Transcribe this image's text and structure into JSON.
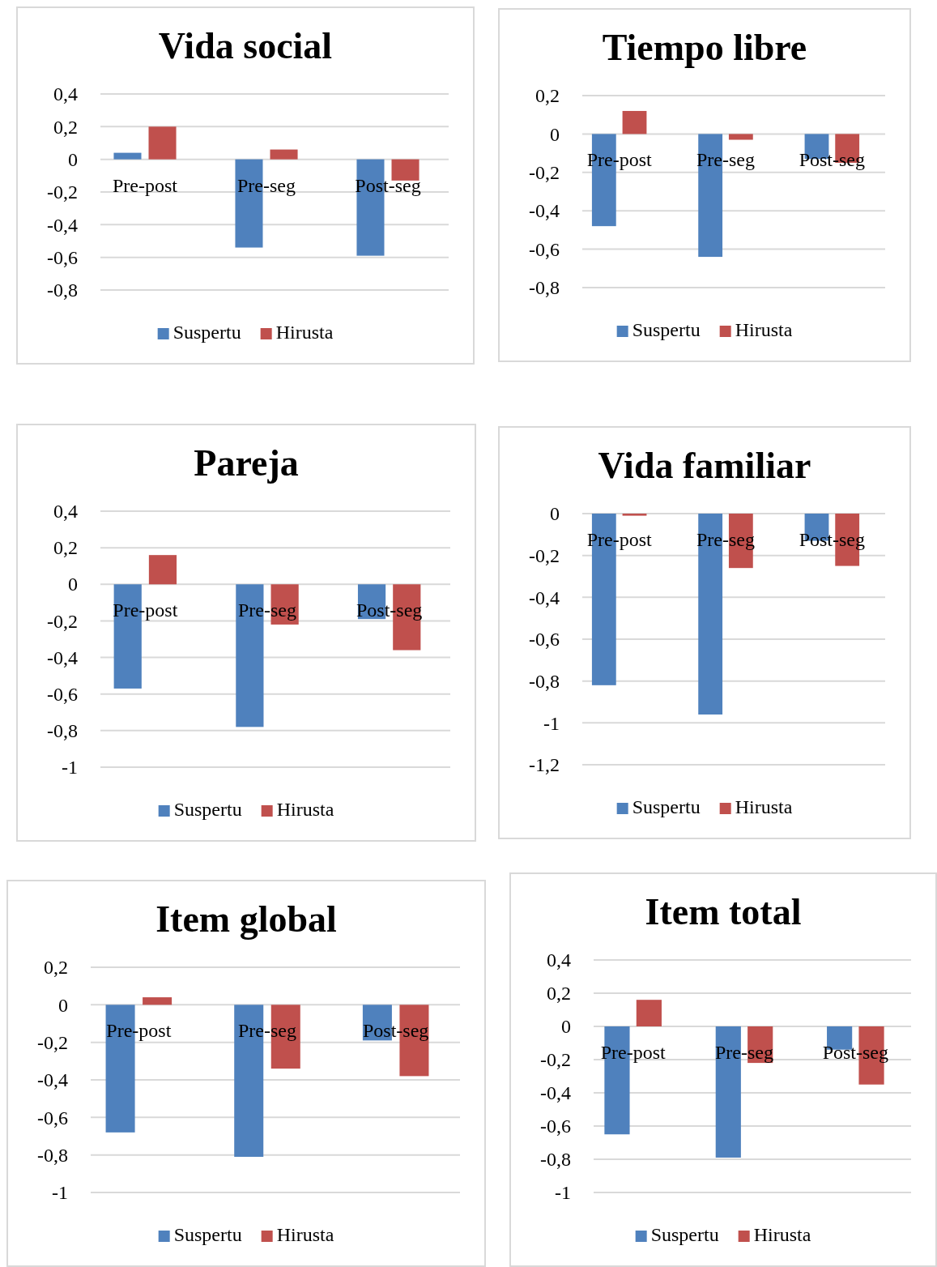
{
  "chart_data": [
    {
      "type": "bar",
      "title": "Vida social",
      "categories": [
        "Pre-post",
        "Pre-seg",
        "Post-seg"
      ],
      "series": [
        {
          "name": "Suspertu",
          "color": "#4f81bd",
          "values": [
            0.04,
            -0.54,
            -0.59
          ]
        },
        {
          "name": "Hirusta",
          "color": "#c0504d",
          "values": [
            0.2,
            0.06,
            -0.13
          ]
        }
      ],
      "ylim": [
        -0.8,
        0.4
      ],
      "yticks": [
        {
          "value": 0.4,
          "label": "0,4"
        },
        {
          "value": 0.2,
          "label": "0,2"
        },
        {
          "value": 0,
          "label": "0"
        },
        {
          "value": -0.2,
          "label": "-0,2"
        },
        {
          "value": -0.4,
          "label": "-0,4"
        },
        {
          "value": -0.6,
          "label": "-0,6"
        },
        {
          "value": -0.8,
          "label": "-0,8"
        }
      ],
      "grid": "y",
      "legend": "bottom"
    },
    {
      "type": "bar",
      "title": "Tiempo libre",
      "categories": [
        "Pre-post",
        "Pre-seg",
        "Post-seg"
      ],
      "series": [
        {
          "name": "Suspertu",
          "color": "#4f81bd",
          "values": [
            -0.48,
            -0.64,
            -0.13
          ]
        },
        {
          "name": "Hirusta",
          "color": "#c0504d",
          "values": [
            0.12,
            -0.03,
            -0.15
          ]
        }
      ],
      "ylim": [
        -0.8,
        0.2
      ],
      "yticks": [
        {
          "value": 0.2,
          "label": "0,2"
        },
        {
          "value": 0,
          "label": "0"
        },
        {
          "value": -0.2,
          "label": "-0,2"
        },
        {
          "value": -0.4,
          "label": "-0,4"
        },
        {
          "value": -0.6,
          "label": "-0,6"
        },
        {
          "value": -0.8,
          "label": "-0,8"
        }
      ],
      "grid": "y",
      "legend": "bottom"
    },
    {
      "type": "bar",
      "title": "Pareja",
      "categories": [
        "Pre-post",
        "Pre-seg",
        "Post-seg"
      ],
      "series": [
        {
          "name": "Suspertu",
          "color": "#4f81bd",
          "values": [
            -0.57,
            -0.78,
            -0.19
          ]
        },
        {
          "name": "Hirusta",
          "color": "#c0504d",
          "values": [
            0.16,
            -0.22,
            -0.36
          ]
        }
      ],
      "ylim": [
        -1,
        0.4
      ],
      "yticks": [
        {
          "value": 0.4,
          "label": "0,4"
        },
        {
          "value": 0.2,
          "label": "0,2"
        },
        {
          "value": 0,
          "label": "0"
        },
        {
          "value": -0.2,
          "label": "-0,2"
        },
        {
          "value": -0.4,
          "label": "-0,4"
        },
        {
          "value": -0.6,
          "label": "-0,6"
        },
        {
          "value": -0.8,
          "label": "-0,8"
        },
        {
          "value": -1,
          "label": "-1"
        }
      ],
      "grid": "y",
      "legend": "bottom"
    },
    {
      "type": "bar",
      "title": "Vida familiar",
      "categories": [
        "Pre-post",
        "Pre-seg",
        "Post-seg"
      ],
      "series": [
        {
          "name": "Suspertu",
          "color": "#4f81bd",
          "values": [
            -0.82,
            -0.96,
            -0.13
          ]
        },
        {
          "name": "Hirusta",
          "color": "#c0504d",
          "values": [
            -0.01,
            -0.26,
            -0.25
          ]
        }
      ],
      "ylim": [
        -1.2,
        0
      ],
      "yticks": [
        {
          "value": 0,
          "label": "0"
        },
        {
          "value": -0.2,
          "label": "-0,2"
        },
        {
          "value": -0.4,
          "label": "-0,4"
        },
        {
          "value": -0.6,
          "label": "-0,6"
        },
        {
          "value": -0.8,
          "label": "-0,8"
        },
        {
          "value": -1,
          "label": "-1"
        },
        {
          "value": -1.2,
          "label": "-1,2"
        }
      ],
      "grid": "y",
      "legend": "bottom"
    },
    {
      "type": "bar",
      "title": "Item global",
      "categories": [
        "Pre-post",
        "Pre-seg",
        "Post-seg"
      ],
      "series": [
        {
          "name": "Suspertu",
          "color": "#4f81bd",
          "values": [
            -0.68,
            -0.81,
            -0.19
          ]
        },
        {
          "name": "Hirusta",
          "color": "#c0504d",
          "values": [
            0.04,
            -0.34,
            -0.38
          ]
        }
      ],
      "ylim": [
        -1,
        0.2
      ],
      "yticks": [
        {
          "value": 0.2,
          "label": "0,2"
        },
        {
          "value": 0,
          "label": "0"
        },
        {
          "value": -0.2,
          "label": "-0,2"
        },
        {
          "value": -0.4,
          "label": "-0,4"
        },
        {
          "value": -0.6,
          "label": "-0,6"
        },
        {
          "value": -0.8,
          "label": "-0,8"
        },
        {
          "value": -1,
          "label": "-1"
        }
      ],
      "grid": "y",
      "legend": "bottom"
    },
    {
      "type": "bar",
      "title": "Item total",
      "categories": [
        "Pre-post",
        "Pre-seg",
        "Post-seg"
      ],
      "series": [
        {
          "name": "Suspertu",
          "color": "#4f81bd",
          "values": [
            -0.65,
            -0.79,
            -0.14
          ]
        },
        {
          "name": "Hirusta",
          "color": "#c0504d",
          "values": [
            0.16,
            -0.22,
            -0.35
          ]
        }
      ],
      "ylim": [
        -1,
        0.4
      ],
      "yticks": [
        {
          "value": 0.4,
          "label": "0,4"
        },
        {
          "value": 0.2,
          "label": "0,2"
        },
        {
          "value": 0,
          "label": "0"
        },
        {
          "value": -0.2,
          "label": "-0,2"
        },
        {
          "value": -0.4,
          "label": "-0,4"
        },
        {
          "value": -0.6,
          "label": "-0,6"
        },
        {
          "value": -0.8,
          "label": "-0,8"
        },
        {
          "value": -1,
          "label": "-1"
        }
      ],
      "grid": "y",
      "legend": "bottom"
    }
  ]
}
